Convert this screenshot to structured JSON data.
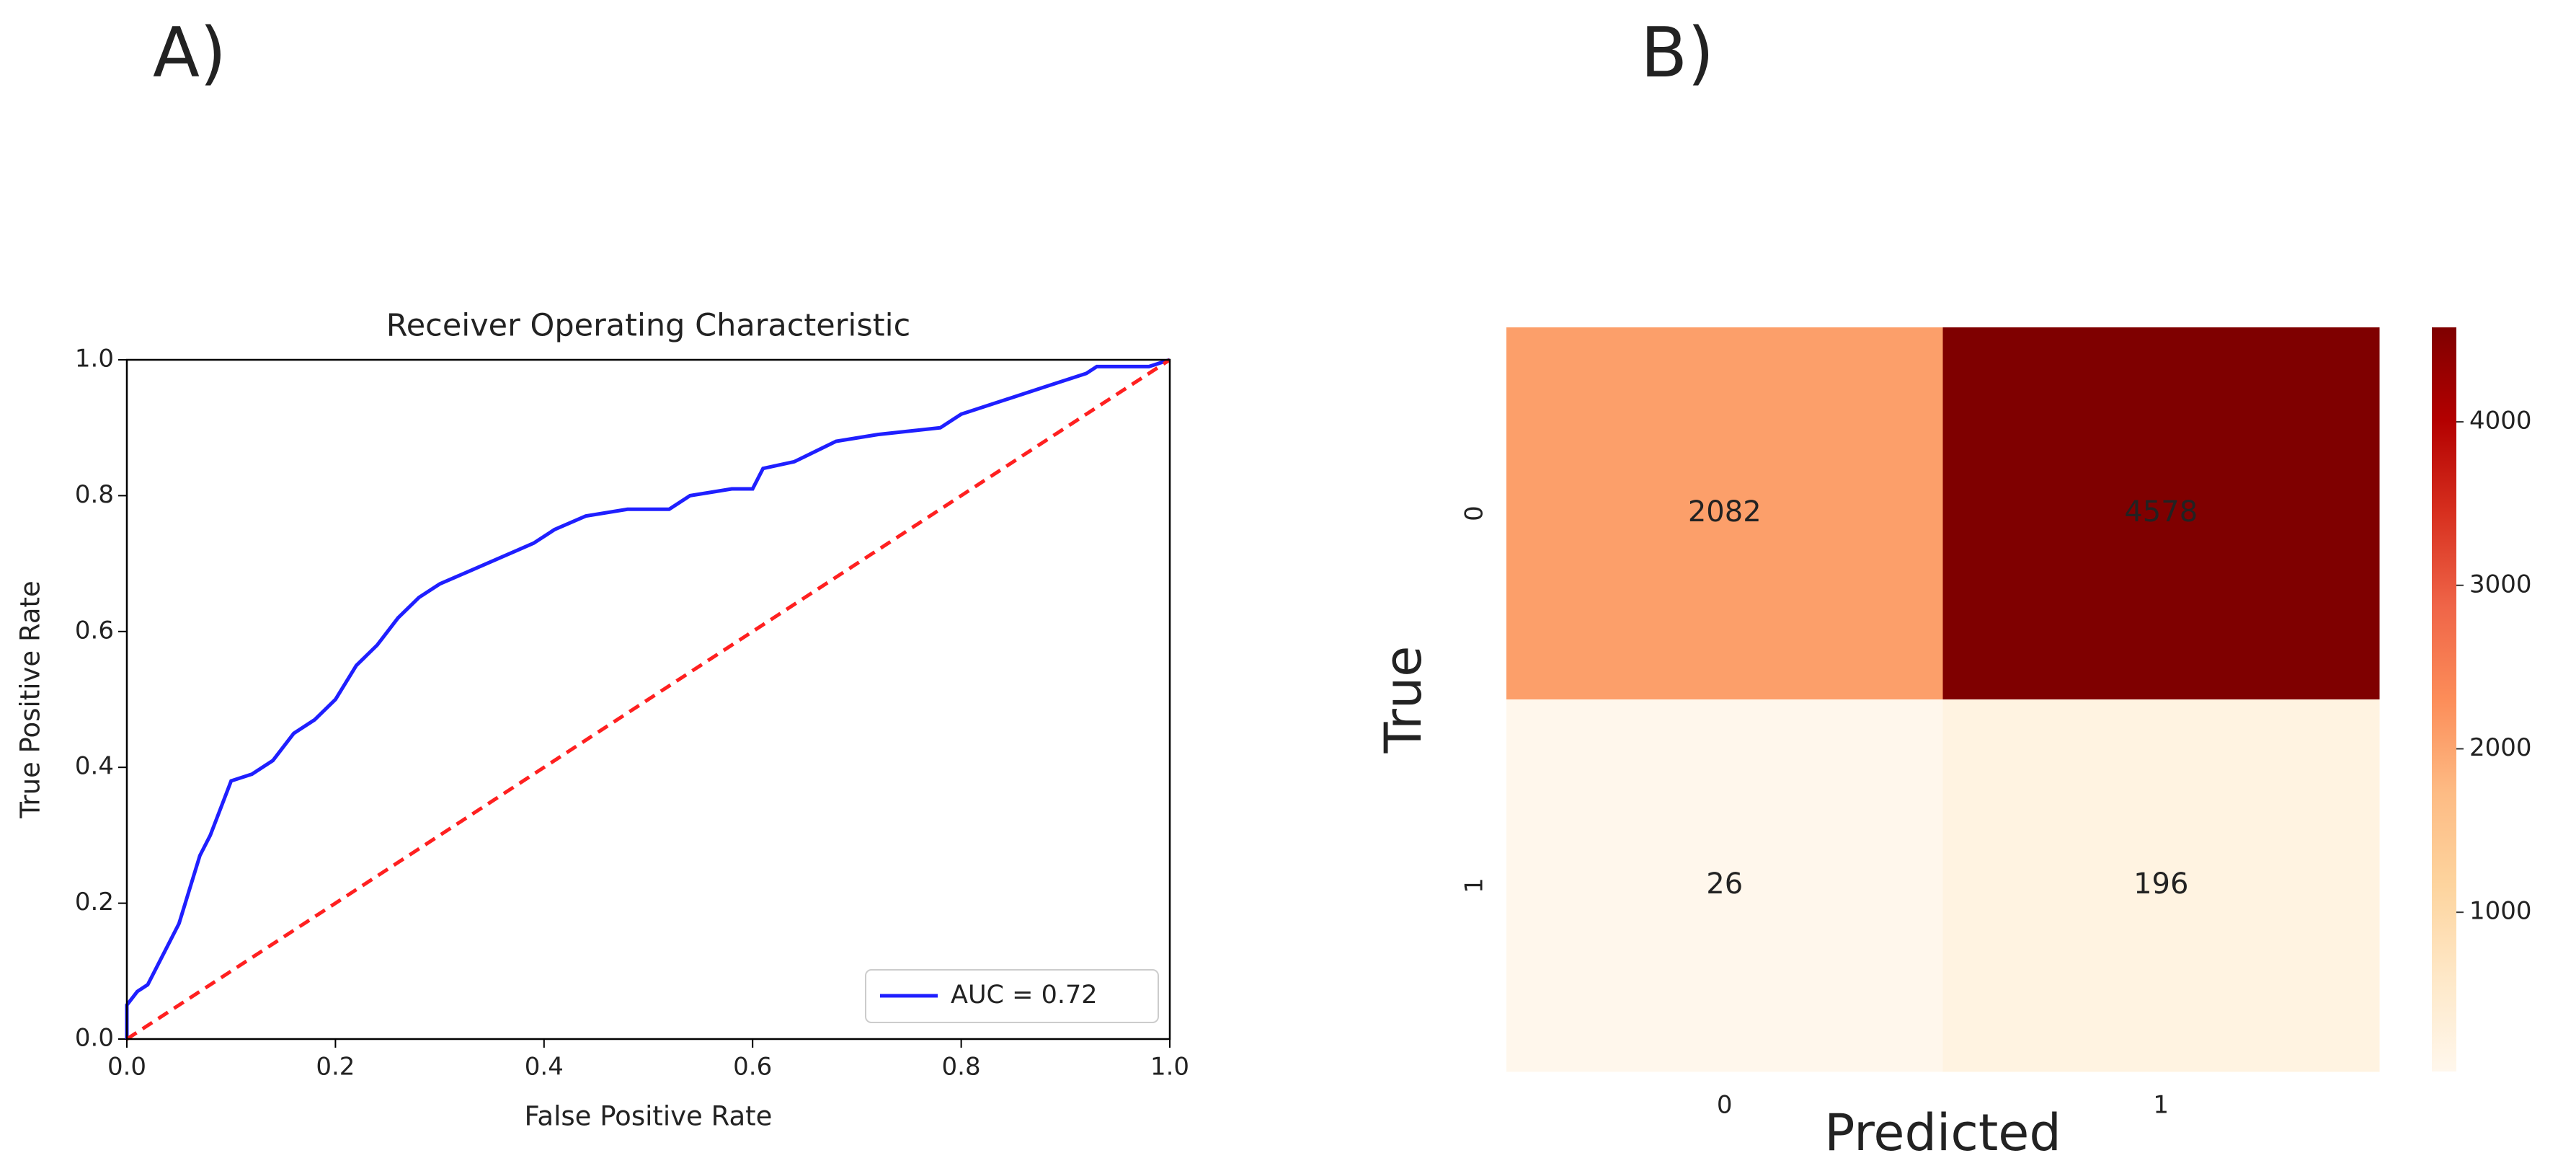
{
  "chart_data": [
    {
      "type": "line",
      "label": "A)",
      "title": "Receiver Operating Characteristic",
      "xlabel": "False Positive Rate",
      "ylabel": "True Positive Rate",
      "xlim": [
        0,
        1
      ],
      "ylim": [
        0,
        1
      ],
      "xticks": [
        {
          "value": 0,
          "label": "0.0"
        },
        {
          "value": 0.2,
          "label": "0.2"
        },
        {
          "value": 0.4,
          "label": "0.4"
        },
        {
          "value": 0.6,
          "label": "0.6"
        },
        {
          "value": 0.8,
          "label": "0.8"
        },
        {
          "value": 1,
          "label": "1.0"
        }
      ],
      "yticks": [
        {
          "value": 0,
          "label": "0.0"
        },
        {
          "value": 0.2,
          "label": "0.2"
        },
        {
          "value": 0.4,
          "label": "0.4"
        },
        {
          "value": 0.6,
          "label": "0.6"
        },
        {
          "value": 0.8,
          "label": "0.8"
        },
        {
          "value": 1,
          "label": "1.0"
        }
      ],
      "legend": "lower right",
      "series": [
        {
          "name": "AUC = 0.72",
          "color": "#1f1fff",
          "linestyle": "solid",
          "x": [
            0,
            0,
            0.01,
            0.02,
            0.03,
            0.04,
            0.05,
            0.06,
            0.07,
            0.08,
            0.09,
            0.1,
            0.12,
            0.14,
            0.16,
            0.18,
            0.2,
            0.22,
            0.24,
            0.26,
            0.28,
            0.3,
            0.33,
            0.36,
            0.39,
            0.41,
            0.44,
            0.48,
            0.52,
            0.54,
            0.58,
            0.6,
            0.61,
            0.64,
            0.68,
            0.72,
            0.78,
            0.8,
            0.84,
            0.88,
            0.92,
            0.93,
            0.98,
            1
          ],
          "values": [
            0,
            0.05,
            0.07,
            0.08,
            0.11,
            0.14,
            0.17,
            0.22,
            0.27,
            0.3,
            0.34,
            0.38,
            0.39,
            0.41,
            0.45,
            0.47,
            0.5,
            0.55,
            0.58,
            0.62,
            0.65,
            0.67,
            0.69,
            0.71,
            0.73,
            0.75,
            0.77,
            0.78,
            0.78,
            0.8,
            0.81,
            0.81,
            0.84,
            0.85,
            0.88,
            0.89,
            0.9,
            0.92,
            0.94,
            0.96,
            0.98,
            0.99,
            0.99,
            1
          ]
        },
        {
          "color": "#ff2020",
          "linestyle": "dashed",
          "x": [
            0,
            1
          ],
          "values": [
            0,
            1
          ]
        }
      ]
    },
    {
      "type": "heatmap",
      "label": "B)",
      "xlabel": "Predicted",
      "ylabel": "True",
      "x_categories": [
        "0",
        "1"
      ],
      "y_categories": [
        "0",
        "1"
      ],
      "values": [
        [
          2082,
          4578
        ],
        [
          26,
          196
        ]
      ],
      "colormap": "OrRd",
      "clim": [
        26,
        4578
      ],
      "colorbar_ticks": [
        1000,
        2000,
        3000,
        4000
      ]
    }
  ]
}
